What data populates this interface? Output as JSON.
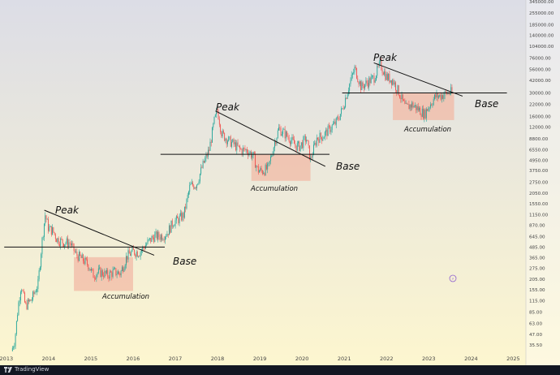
{
  "chart_data": {
    "type": "line",
    "yscale": "log",
    "ylim": [
      25.5,
      345000
    ],
    "xlim": [
      2012.85,
      2025.3
    ],
    "y_ticks": [
      "345000.00",
      "255000.00",
      "185000.00",
      "140000.00",
      "104000.00",
      "76000.00",
      "56000.00",
      "42000.00",
      "30000.00",
      "22000.00",
      "16000.00",
      "12000.00",
      "8800.00",
      "6550.00",
      "4950.00",
      "3750.00",
      "2750.00",
      "2050.00",
      "1550.00",
      "1150.00",
      "870.00",
      "645.00",
      "485.00",
      "365.00",
      "275.00",
      "205.00",
      "155.00",
      "115.00",
      "85.00",
      "63.00",
      "47.00",
      "35.50"
    ],
    "x_ticks": [
      "2013",
      "2014",
      "2015",
      "2016",
      "2017",
      "2018",
      "2019",
      "2020",
      "2021",
      "2022",
      "2023",
      "2024",
      "2025"
    ],
    "x_tick_values": [
      2013,
      2014,
      2015,
      2016,
      2017,
      2018,
      2019,
      2020,
      2021,
      2022,
      2023,
      2024,
      2025
    ],
    "series": [
      {
        "x": [
          2013.12,
          2013.2,
          2013.28,
          2013.35,
          2013.45,
          2013.6,
          2013.75,
          2013.85,
          2013.92,
          2014.0,
          2014.1,
          2014.2,
          2014.35,
          2014.5,
          2014.65,
          2014.8,
          2014.95,
          2015.05,
          2015.2,
          2015.4,
          2015.55,
          2015.7,
          2015.85,
          2016.0,
          2016.15,
          2016.35,
          2016.5,
          2016.65,
          2016.8,
          2016.95,
          2017.05,
          2017.2,
          2017.35,
          2017.5,
          2017.65,
          2017.8,
          2017.92,
          2018.0,
          2018.1,
          2018.25,
          2018.4,
          2018.55,
          2018.7,
          2018.85,
          2018.95,
          2019.05,
          2019.2,
          2019.35,
          2019.45,
          2019.55,
          2019.7,
          2019.85,
          2019.95,
          2020.1,
          2020.2,
          2020.35,
          2020.5,
          2020.65,
          2020.8,
          2020.95,
          2021.1,
          2021.25,
          2021.4,
          2021.55,
          2021.7,
          2021.85,
          2022.0,
          2022.15,
          2022.3,
          2022.45,
          2022.6,
          2022.75,
          2022.9,
          2023.0,
          2023.15,
          2023.3,
          2023.45,
          2023.55
        ],
        "values": [
          30,
          40,
          100,
          180,
          100,
          120,
          180,
          600,
          1150,
          800,
          750,
          600,
          550,
          550,
          400,
          350,
          300,
          230,
          250,
          230,
          250,
          240,
          380,
          430,
          420,
          550,
          650,
          650,
          700,
          950,
          1000,
          1150,
          2500,
          2600,
          4300,
          6500,
          14000,
          19000,
          10000,
          8500,
          7500,
          6500,
          6500,
          5500,
          3800,
          3700,
          4000,
          8000,
          11500,
          10500,
          9000,
          7300,
          7200,
          9000,
          5000,
          9000,
          9500,
          11500,
          13500,
          19000,
          35000,
          58000,
          35000,
          40000,
          45000,
          65000,
          46000,
          42000,
          30000,
          20000,
          22000,
          19500,
          17000,
          21000,
          27000,
          28000,
          30000,
          31000
        ]
      }
    ],
    "trendlines": [
      {
        "x": [
          2013.9,
          2016.5
        ],
        "y": [
          1300,
          390
        ]
      },
      {
        "x": [
          2017.95,
          2020.55
        ],
        "y": [
          18500,
          4200
        ]
      },
      {
        "x": [
          2021.7,
          2023.8
        ],
        "y": [
          67000,
          27500
        ]
      }
    ],
    "base_lines": [
      {
        "y": 485,
        "x": [
          2012.95,
          2016.75
        ]
      },
      {
        "y": 5800,
        "x": [
          2016.65,
          2020.65
        ]
      },
      {
        "y": 30000,
        "x": [
          2020.95,
          2024.85
        ]
      }
    ],
    "accumulation_boxes": [
      {
        "x": [
          2014.6,
          2016.0
        ],
        "y": [
          150,
          370
        ]
      },
      {
        "x": [
          2018.8,
          2020.2
        ],
        "y": [
          2850,
          5750
        ]
      },
      {
        "x": [
          2022.15,
          2023.6
        ],
        "y": [
          14500,
          30000
        ]
      }
    ],
    "annotations": {
      "peak_label": "Peak",
      "base_label": "Base",
      "accumulation_label": "Accumulation"
    },
    "grid": false,
    "colors": {
      "up": "#26a69a",
      "down": "#ef5350",
      "bg_top": "#dcdde6",
      "bg_bottom": "#fdf6cf",
      "box": "#f2b9a6"
    }
  },
  "footer": {
    "brand": "TradingView",
    "watermark": "TV"
  }
}
